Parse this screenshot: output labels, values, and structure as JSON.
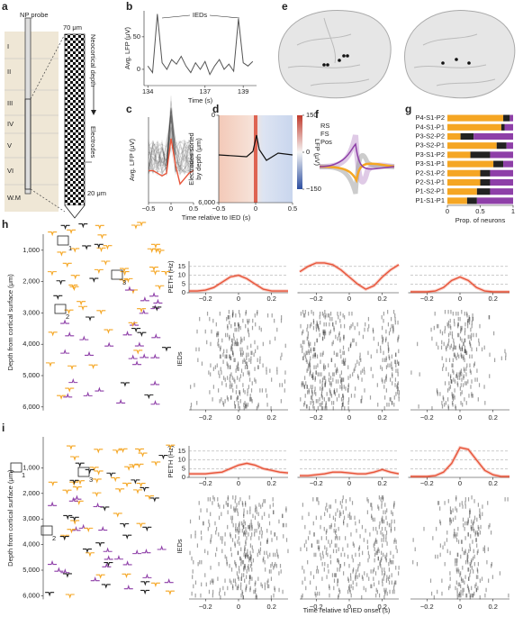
{
  "panel_labels": [
    "a",
    "b",
    "c",
    "d",
    "e",
    "f",
    "g",
    "h",
    "i"
  ],
  "probe": {
    "title": "NP probe",
    "width": "70 μm",
    "depth": "Neocortical depth",
    "electrodes": "Electrodes",
    "spacing": "20 μm",
    "layers": [
      "I",
      "II",
      "III",
      "IV",
      "V",
      "VI",
      "W.M"
    ]
  },
  "waveform_legend": [
    {
      "name": "RS",
      "color": "#f5a623"
    },
    {
      "name": "FS",
      "color": "#222222"
    },
    {
      "name": "Pos",
      "color": "#8e3fa8"
    }
  ],
  "depth_axis": {
    "label": "Depth from cortical surface (μm)",
    "ticks": [
      "1,000",
      "2,000",
      "3,000",
      "4,000",
      "5,000",
      "6,000"
    ]
  },
  "unit_boxes": [
    "1",
    "2",
    "3"
  ],
  "raster_label": "IEDs",
  "time_label": "Time relative to IED onset (s)",
  "chart_data": [
    {
      "type": "line",
      "annotation": "IEDs",
      "xlabel": "Time (s)",
      "ylabel": "Avg. LFP (μV)",
      "x": [
        134,
        134.25,
        134.5,
        134.75,
        135,
        135.25,
        135.5,
        135.75,
        136,
        136.25,
        136.5,
        136.75,
        137,
        137.25,
        137.5,
        137.75,
        138,
        138.25,
        138.5,
        138.75,
        139,
        139.25,
        139.5
      ],
      "series": [
        {
          "color": "#555555",
          "values": [
            5,
            -5,
            85,
            10,
            0,
            15,
            8,
            20,
            5,
            -5,
            10,
            0,
            12,
            -8,
            5,
            15,
            0,
            8,
            -3,
            78,
            10,
            5,
            12
          ]
        }
      ],
      "xlim": [
        133.8,
        139.7
      ],
      "ylim": [
        -25,
        90
      ],
      "xticks": [
        134,
        137,
        139
      ],
      "yticks": [
        0,
        50
      ]
    },
    {
      "type": "line",
      "xlabel": "Time relative to IED (s)",
      "ylabel": "Avg. LFP (μV)",
      "x": [
        -0.5,
        -0.4,
        -0.3,
        -0.2,
        -0.1,
        0,
        0.1,
        0.2,
        0.3,
        0.4,
        0.5
      ],
      "series": [
        {
          "color": "#e8553a",
          "values": [
            0,
            0,
            -5,
            -10,
            -5,
            60,
            10,
            -25,
            -15,
            -5,
            0
          ]
        }
      ],
      "xlim": [
        -0.5,
        0.5
      ],
      "ylim": [
        -60,
        100
      ],
      "xticks": [
        {
          "value": -0.5,
          "label": "−0.5"
        },
        0,
        0.5
      ]
    },
    {
      "type": "heatmap",
      "ylabel": [
        "Electrodes sorted",
        "by depth (μm)"
      ],
      "clabel": "LFP (μV)",
      "xlim": [
        -0.5,
        0.5
      ],
      "ylim": [
        6000,
        0
      ],
      "xticks": [
        {
          "value": -0.5,
          "label": "−0.5"
        },
        0,
        0.5
      ],
      "yticks": [
        0,
        {
          "value": 6000,
          "label": "6,000"
        }
      ],
      "clim": [
        -150,
        150
      ],
      "cticks": [
        150,
        0,
        {
          "value": -150,
          "label": "−150"
        }
      ]
    },
    {
      "type": "hbar_stacked",
      "xlabel": "Prop. of neurons",
      "categories": [
        "P4-S1-P2",
        "P4-S1-P1",
        "P3-S2-P2",
        "P3-S2-P1",
        "P3-S1-P2",
        "P3-S1-P1",
        "P2-S1-P2",
        "P2-S1-P1",
        "P1-S2-P1",
        "P1-S1-P1"
      ],
      "series": [
        {
          "color": "#f5a623",
          "values": [
            0.85,
            0.82,
            0.2,
            0.75,
            0.35,
            0.7,
            0.5,
            0.5,
            0.45,
            0.3
          ]
        },
        {
          "color": "#222222",
          "values": [
            0.1,
            0.05,
            0.2,
            0.15,
            0.3,
            0.15,
            0.15,
            0.15,
            0.2,
            0.15
          ]
        },
        {
          "color": "#8e3fa8",
          "values": [
            0.05,
            0.13,
            0.6,
            0.1,
            0.35,
            0.15,
            0.35,
            0.35,
            0.35,
            0.55
          ]
        }
      ],
      "xlim": [
        0,
        1
      ],
      "xticks": [
        0,
        0.5,
        1
      ]
    },
    {
      "type": "line",
      "ylabel": "PETH (Hz)",
      "grid": true,
      "x": [
        -0.3,
        -0.25,
        -0.2,
        -0.15,
        -0.1,
        -0.05,
        0,
        0.05,
        0.1,
        0.15,
        0.2,
        0.25,
        0.3
      ],
      "series": [
        {
          "color": "#e8553a",
          "values": [
            1,
            1,
            1.5,
            3,
            6,
            9,
            10,
            8,
            5,
            2,
            1,
            1,
            1
          ]
        }
      ],
      "xlim": [
        -0.3,
        0.3
      ],
      "ylim": [
        0,
        18
      ],
      "xticks": [
        {
          "value": -0.2,
          "label": "−0.2"
        },
        0,
        0.2
      ],
      "yticks": [
        0,
        5,
        10,
        15
      ]
    },
    {
      "type": "line",
      "grid": true,
      "x": [
        -0.3,
        -0.25,
        -0.2,
        -0.15,
        -0.1,
        -0.05,
        0,
        0.05,
        0.1,
        0.15,
        0.2,
        0.25,
        0.3
      ],
      "series": [
        {
          "color": "#e8553a",
          "values": [
            12,
            15,
            17,
            17,
            16,
            13,
            9,
            5,
            2,
            4,
            9,
            13,
            16
          ]
        }
      ],
      "xlim": [
        -0.3,
        0.3
      ],
      "ylim": [
        0,
        18
      ],
      "xticks": [
        {
          "value": -0.2,
          "label": "−0.2"
        },
        0,
        0.2
      ],
      "yticks": [
        0,
        5,
        10,
        15
      ]
    },
    {
      "type": "line",
      "grid": true,
      "x": [
        -0.3,
        -0.25,
        -0.2,
        -0.15,
        -0.1,
        -0.05,
        0,
        0.05,
        0.1,
        0.15,
        0.2,
        0.25,
        0.3
      ],
      "series": [
        {
          "color": "#e8553a",
          "values": [
            0.5,
            0.5,
            0.5,
            1,
            3,
            7,
            9,
            7,
            3,
            1,
            0.5,
            0.5,
            0.5
          ]
        }
      ],
      "xlim": [
        -0.3,
        0.3
      ],
      "ylim": [
        0,
        18
      ],
      "xticks": [
        {
          "value": -0.2,
          "label": "−0.2"
        },
        0,
        0.2
      ],
      "yticks": [
        0,
        5,
        10,
        15
      ]
    },
    {
      "type": "line",
      "ylabel": "PETH (Hz)",
      "grid": true,
      "x": [
        -0.3,
        -0.25,
        -0.2,
        -0.15,
        -0.1,
        -0.05,
        0,
        0.05,
        0.1,
        0.15,
        0.2,
        0.25,
        0.3
      ],
      "series": [
        {
          "color": "#e8553a",
          "values": [
            2,
            2,
            2,
            2.5,
            3,
            5,
            7,
            8,
            7,
            5,
            4,
            3,
            2.5
          ]
        }
      ],
      "xlim": [
        -0.3,
        0.3
      ],
      "ylim": [
        0,
        18
      ],
      "xticks": [
        {
          "value": -0.2,
          "label": "−0.2"
        },
        0,
        0.2
      ],
      "yticks": [
        0,
        5,
        10,
        15
      ]
    },
    {
      "type": "line",
      "grid": true,
      "x": [
        -0.3,
        -0.25,
        -0.2,
        -0.15,
        -0.1,
        -0.05,
        0,
        0.05,
        0.1,
        0.15,
        0.2,
        0.25,
        0.3
      ],
      "series": [
        {
          "color": "#e8553a",
          "values": [
            1,
            1,
            1.5,
            2,
            3,
            3,
            2.5,
            2,
            2,
            3,
            4.5,
            3,
            2
          ]
        }
      ],
      "xlim": [
        -0.3,
        0.3
      ],
      "ylim": [
        0,
        18
      ],
      "xticks": [
        {
          "value": -0.2,
          "label": "−0.2"
        },
        0,
        0.2
      ],
      "yticks": [
        0,
        5,
        10,
        15
      ]
    },
    {
      "type": "line",
      "grid": true,
      "x": [
        -0.3,
        -0.25,
        -0.2,
        -0.15,
        -0.1,
        -0.05,
        0,
        0.05,
        0.1,
        0.15,
        0.2,
        0.25,
        0.3
      ],
      "series": [
        {
          "color": "#e8553a",
          "values": [
            0.5,
            0.5,
            0.5,
            1,
            3,
            8,
            17,
            16,
            10,
            4,
            1.5,
            0.5,
            0.5
          ]
        }
      ],
      "xlim": [
        -0.3,
        0.3
      ],
      "ylim": [
        0,
        18
      ],
      "xticks": [
        {
          "value": -0.2,
          "label": "−0.2"
        },
        0,
        0.2
      ],
      "yticks": [
        0,
        5,
        10,
        15
      ]
    }
  ]
}
